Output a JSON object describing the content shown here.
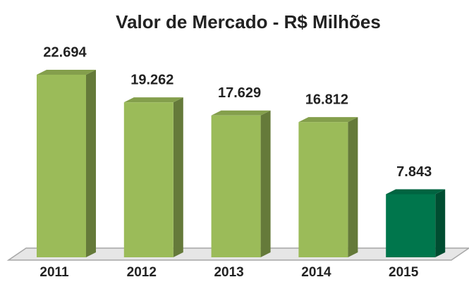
{
  "chart_data": {
    "type": "bar3d",
    "title": "Valor de Mercado - R$ Milhões",
    "categories": [
      "2011",
      "2012",
      "2013",
      "2014",
      "2015"
    ],
    "values": [
      22694,
      19262,
      17629,
      16812,
      7843
    ],
    "value_labels": [
      "22.694",
      "19.262",
      "17.629",
      "16.812",
      "7.843"
    ],
    "colors": [
      "#9bbb59",
      "#9bbb59",
      "#9bbb59",
      "#9bbb59",
      "#00764c"
    ]
  }
}
